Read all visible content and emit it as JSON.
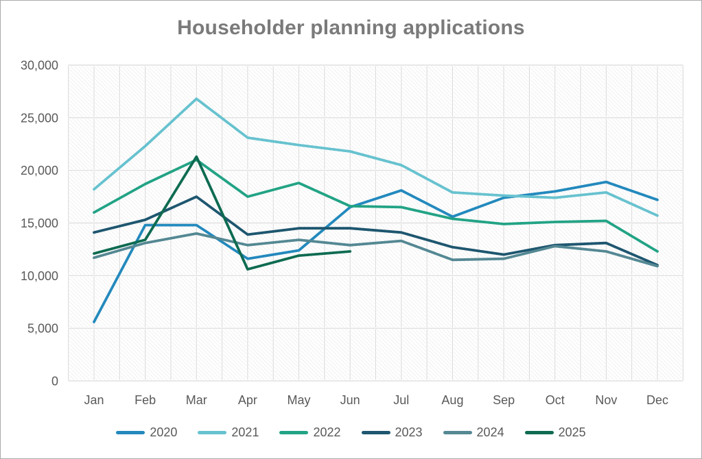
{
  "title": "Householder planning applications",
  "chart_data": {
    "type": "line",
    "title": "Householder planning applications",
    "categories": [
      "Jan",
      "Feb",
      "Mar",
      "Apr",
      "May",
      "Jun",
      "Jul",
      "Aug",
      "Sep",
      "Oct",
      "Nov",
      "Dec"
    ],
    "series": [
      {
        "name": "2020",
        "color": "#2389bd",
        "values": [
          5600,
          14800,
          14800,
          11600,
          12400,
          16500,
          18100,
          15600,
          17400,
          18000,
          18900,
          17200
        ]
      },
      {
        "name": "2021",
        "color": "#67c2cf",
        "values": [
          18200,
          22300,
          26800,
          23100,
          22400,
          21800,
          20500,
          17900,
          17600,
          17400,
          17900,
          15700
        ]
      },
      {
        "name": "2022",
        "color": "#22a385",
        "values": [
          16000,
          18700,
          21000,
          17500,
          18800,
          16600,
          16500,
          15400,
          14900,
          15100,
          15200,
          12300
        ]
      },
      {
        "name": "2023",
        "color": "#1e566f",
        "values": [
          14100,
          15300,
          17500,
          13900,
          14500,
          14500,
          14100,
          12700,
          12000,
          12900,
          13100,
          11000
        ]
      },
      {
        "name": "2024",
        "color": "#548893",
        "values": [
          11700,
          13100,
          14000,
          12900,
          13400,
          12900,
          13300,
          11500,
          11600,
          12800,
          12300,
          10900
        ]
      },
      {
        "name": "2025",
        "color": "#0e6b51",
        "values": [
          12100,
          13400,
          21300,
          10600,
          11900,
          12300
        ]
      }
    ],
    "xlabel": "",
    "ylabel": "",
    "ylim": [
      0,
      30000
    ],
    "ytick_labels": [
      "0",
      "5,000",
      "10,000",
      "15,000",
      "20,000",
      "25,000",
      "30,000"
    ],
    "grid": "both",
    "plot_background": "diagonal-hatch",
    "legend_position": "bottom"
  },
  "colors": {
    "title_text": "#7a7a7a",
    "axis_text": "#595959",
    "gridline": "#d9d9d9",
    "hatch": "#e5e5e5",
    "border": "#aaaaaa"
  }
}
